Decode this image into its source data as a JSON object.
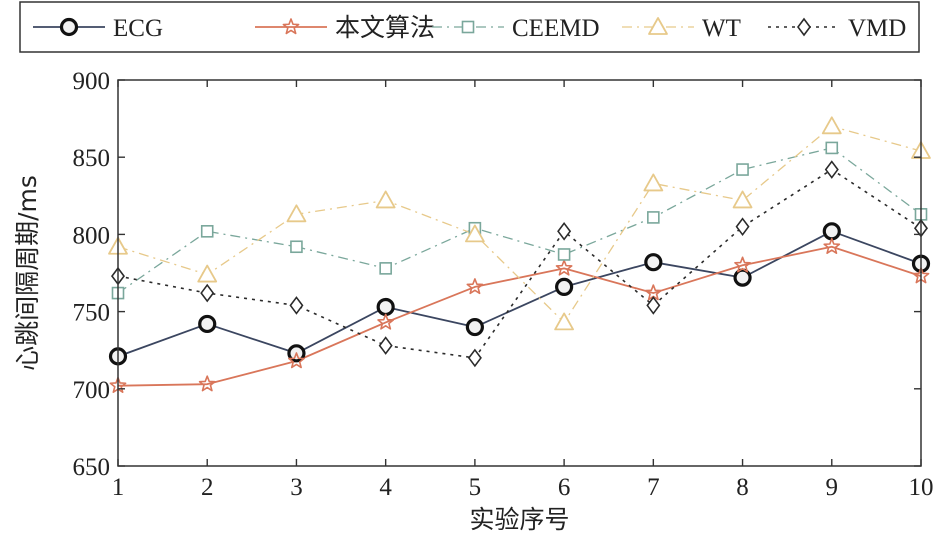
{
  "chart_data": {
    "type": "line",
    "xlabel": "实验序号",
    "ylabel": "心跳间隔周期/ms",
    "x": [
      1,
      2,
      3,
      4,
      5,
      6,
      7,
      8,
      9,
      10
    ],
    "xlim": [
      1,
      10
    ],
    "ylim": [
      650,
      900
    ],
    "yticks": [
      650,
      700,
      750,
      800,
      850,
      900
    ],
    "grid": false,
    "legend_position": "top",
    "series": [
      {
        "name": "ECG",
        "marker": "circle",
        "line": "solid",
        "color": "#3b4660",
        "values": [
          721,
          742,
          723,
          753,
          740,
          766,
          782,
          772,
          802,
          781
        ]
      },
      {
        "name": "本文算法",
        "marker": "star",
        "line": "solid",
        "color": "#d9765a",
        "values": [
          702,
          703,
          718,
          743,
          766,
          778,
          762,
          780,
          792,
          773
        ]
      },
      {
        "name": "CEEMD",
        "marker": "square",
        "line": "dashdot",
        "color": "#7aa79b",
        "values": [
          762,
          802,
          792,
          778,
          804,
          787,
          811,
          842,
          856,
          813
        ]
      },
      {
        "name": "WT",
        "marker": "triangle",
        "line": "dashdot",
        "color": "#e7c98a",
        "values": [
          792,
          774,
          813,
          822,
          800,
          743,
          833,
          822,
          870,
          854
        ]
      },
      {
        "name": "VMD",
        "marker": "diamond",
        "line": "dotted",
        "color": "#2b2b2b",
        "values": [
          773,
          762,
          754,
          728,
          720,
          802,
          754,
          805,
          842,
          804
        ]
      }
    ]
  }
}
